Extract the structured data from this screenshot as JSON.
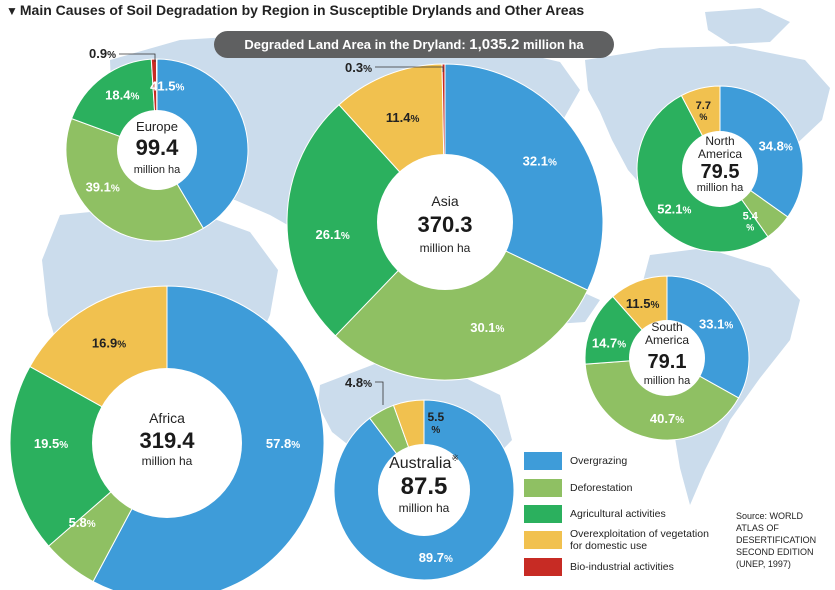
{
  "header": {
    "title": "Main Causes of Soil Degradation by Region in Susceptible Drylands and Other Areas",
    "total_label": "Degraded Land Area in the Dryland:",
    "total_value": "1,035.2",
    "total_unit": "million ha"
  },
  "colors": {
    "overgrazing": "#3e9cd9",
    "deforestation": "#8fc063",
    "agricultural": "#2bb05e",
    "overexploitation": "#f1c14f",
    "bio_industrial": "#c72b24",
    "map_land": "#cbdcec",
    "pill": "#5f6061"
  },
  "legend": [
    {
      "key": "overgrazing",
      "label": "Overgrazing"
    },
    {
      "key": "deforestation",
      "label": "Deforestation"
    },
    {
      "key": "agricultural",
      "label": "Agricultural activities"
    },
    {
      "key": "overexploitation",
      "label": "Overexploitation of vegetation for domestic use"
    },
    {
      "key": "bio_industrial",
      "label": "Bio-industrial activities"
    }
  ],
  "source": [
    "Source: WORLD",
    "ATLAS OF",
    "DESERTIFICATION",
    "SECOND EDITION",
    "(UNEP, 1997)"
  ],
  "chart_data": [
    {
      "type": "pie",
      "region": "Europe",
      "total": "99.4",
      "unit": "million ha",
      "slices": [
        {
          "category": "overgrazing",
          "value": 41.5,
          "label": "41.5%"
        },
        {
          "category": "deforestation",
          "value": 39.1,
          "label": "39.1%"
        },
        {
          "category": "agricultural",
          "value": 18.4,
          "label": "18.4%"
        },
        {
          "category": "bio_industrial",
          "value": 0.9,
          "label": "0.9%"
        }
      ]
    },
    {
      "type": "pie",
      "region": "Asia",
      "total": "370.3",
      "unit": "million ha",
      "slices": [
        {
          "category": "overgrazing",
          "value": 32.1,
          "label": "32.1%"
        },
        {
          "category": "deforestation",
          "value": 30.1,
          "label": "30.1%"
        },
        {
          "category": "agricultural",
          "value": 26.1,
          "label": "26.1%"
        },
        {
          "category": "overexploitation",
          "value": 11.4,
          "label": "11.4%"
        },
        {
          "category": "bio_industrial",
          "value": 0.3,
          "label": "0.3%"
        }
      ]
    },
    {
      "type": "pie",
      "region": "North America",
      "total": "79.5",
      "unit": "million ha",
      "slices": [
        {
          "category": "overgrazing",
          "value": 34.8,
          "label": "34.8%"
        },
        {
          "category": "deforestation",
          "value": 5.4,
          "label": "5.4%"
        },
        {
          "category": "agricultural",
          "value": 52.1,
          "label": "52.1%"
        },
        {
          "category": "overexploitation",
          "value": 7.7,
          "label": "7.7%"
        }
      ]
    },
    {
      "type": "pie",
      "region": "South America",
      "total": "79.1",
      "unit": "million ha",
      "slices": [
        {
          "category": "overgrazing",
          "value": 33.1,
          "label": "33.1%"
        },
        {
          "category": "deforestation",
          "value": 40.7,
          "label": "40.7%"
        },
        {
          "category": "agricultural",
          "value": 14.7,
          "label": "14.7%"
        },
        {
          "category": "overexploitation",
          "value": 11.5,
          "label": "11.5%"
        }
      ]
    },
    {
      "type": "pie",
      "region": "Africa",
      "total": "319.4",
      "unit": "million ha",
      "slices": [
        {
          "category": "overgrazing",
          "value": 57.8,
          "label": "57.8%"
        },
        {
          "category": "deforestation",
          "value": 5.8,
          "label": "5.8%"
        },
        {
          "category": "agricultural",
          "value": 19.5,
          "label": "19.5%"
        },
        {
          "category": "overexploitation",
          "value": 16.9,
          "label": "16.9%"
        }
      ]
    },
    {
      "type": "pie",
      "region": "Australia",
      "region_mark": "※",
      "total": "87.5",
      "unit": "million ha",
      "slices": [
        {
          "category": "overgrazing",
          "value": 89.7,
          "label": "89.7%"
        },
        {
          "category": "deforestation",
          "value": 4.8,
          "label": "4.8%"
        },
        {
          "category": "overexploitation",
          "value": 5.5,
          "label": "5.5%"
        }
      ]
    }
  ]
}
